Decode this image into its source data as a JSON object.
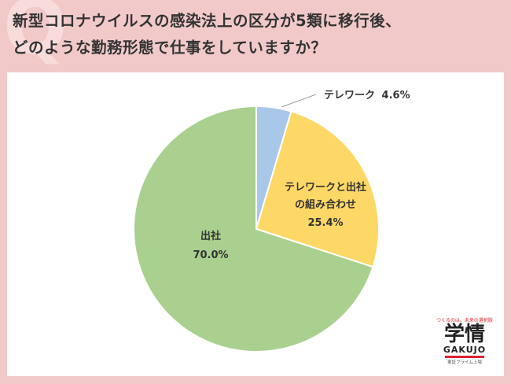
{
  "title_line1": "新型コロナウイルスの感染法上の区分が5類に移行後、",
  "title_line2": "どのような勤務形態で仕事をしていますか？",
  "chart_data": {
    "type": "pie",
    "slices": [
      {
        "label": "テレワーク",
        "value": 4.6,
        "value_label": "4.6%",
        "color": "#a9c7e8"
      },
      {
        "label": "テレワークと出社の組み合わせ",
        "label_lines": [
          "テレワークと出社",
          "の組み合わせ"
        ],
        "value": 25.4,
        "value_label": "25.4%",
        "color": "#fed866"
      },
      {
        "label": "出社",
        "value": 70.0,
        "value_label": "70.0%",
        "color": "#a9d08e"
      }
    ],
    "start": "12 o'clock",
    "direction": "clockwise"
  },
  "logo": {
    "tagline": "つくるのは、未来の選択肢",
    "kanji": "学情",
    "en": "GAKUJO",
    "sub": "東証プライム上場"
  }
}
